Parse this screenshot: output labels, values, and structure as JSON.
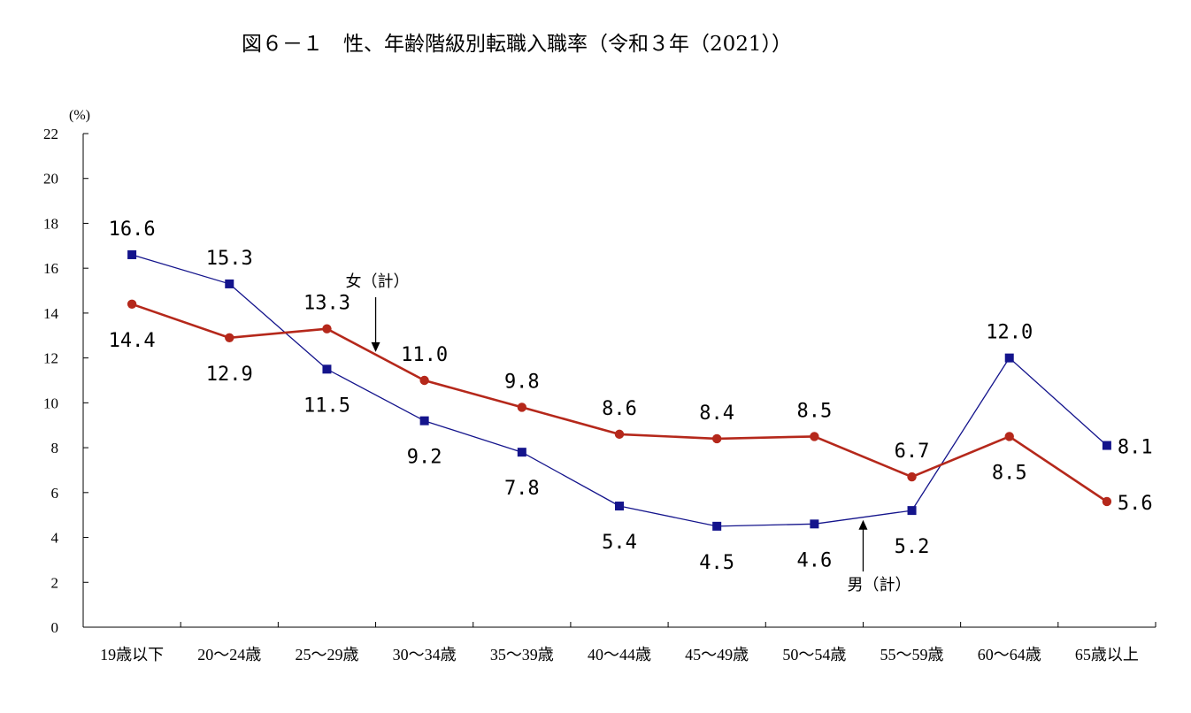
{
  "chart_data": {
    "type": "line",
    "title": "図６－１　性、年齢階級別転職入職率（令和３年（2021））",
    "ylabel": "(%)",
    "xlabel": "",
    "ylim": [
      0,
      22
    ],
    "yticks": [
      0,
      2,
      4,
      6,
      8,
      10,
      12,
      14,
      16,
      18,
      20,
      22
    ],
    "grid": false,
    "categories": [
      "19歳以下",
      "20～24歳",
      "25～29歳",
      "30～34歳",
      "35～39歳",
      "40～44歳",
      "45～49歳",
      "50～54歳",
      "55～59歳",
      "60～64歳",
      "65歳以上"
    ],
    "series": [
      {
        "key": "female",
        "color": "#b5281b",
        "marker": "circle",
        "values": [
          14.4,
          12.9,
          13.3,
          11.0,
          9.8,
          8.6,
          8.4,
          8.5,
          6.7,
          8.5,
          5.6
        ],
        "labels": [
          "14.4",
          "12.9",
          "13.3",
          "11.0",
          "9.8",
          "8.6",
          "8.4",
          "8.5",
          "6.7",
          "8.5",
          "5.6"
        ]
      },
      {
        "key": "male",
        "color": "#14148c",
        "marker": "square",
        "values": [
          16.6,
          15.3,
          11.5,
          9.2,
          7.8,
          5.4,
          4.5,
          4.6,
          5.2,
          12.0,
          8.1
        ],
        "labels": [
          "16.6",
          "15.3",
          "11.5",
          "9.2",
          "7.8",
          "5.4",
          "4.5",
          "4.6",
          "5.2",
          "12.0",
          "8.1"
        ]
      }
    ],
    "annotations": [
      {
        "key": "female",
        "text": "女（計）",
        "arrow": "down"
      },
      {
        "key": "male",
        "text": "男（計）",
        "arrow": "up"
      }
    ]
  }
}
